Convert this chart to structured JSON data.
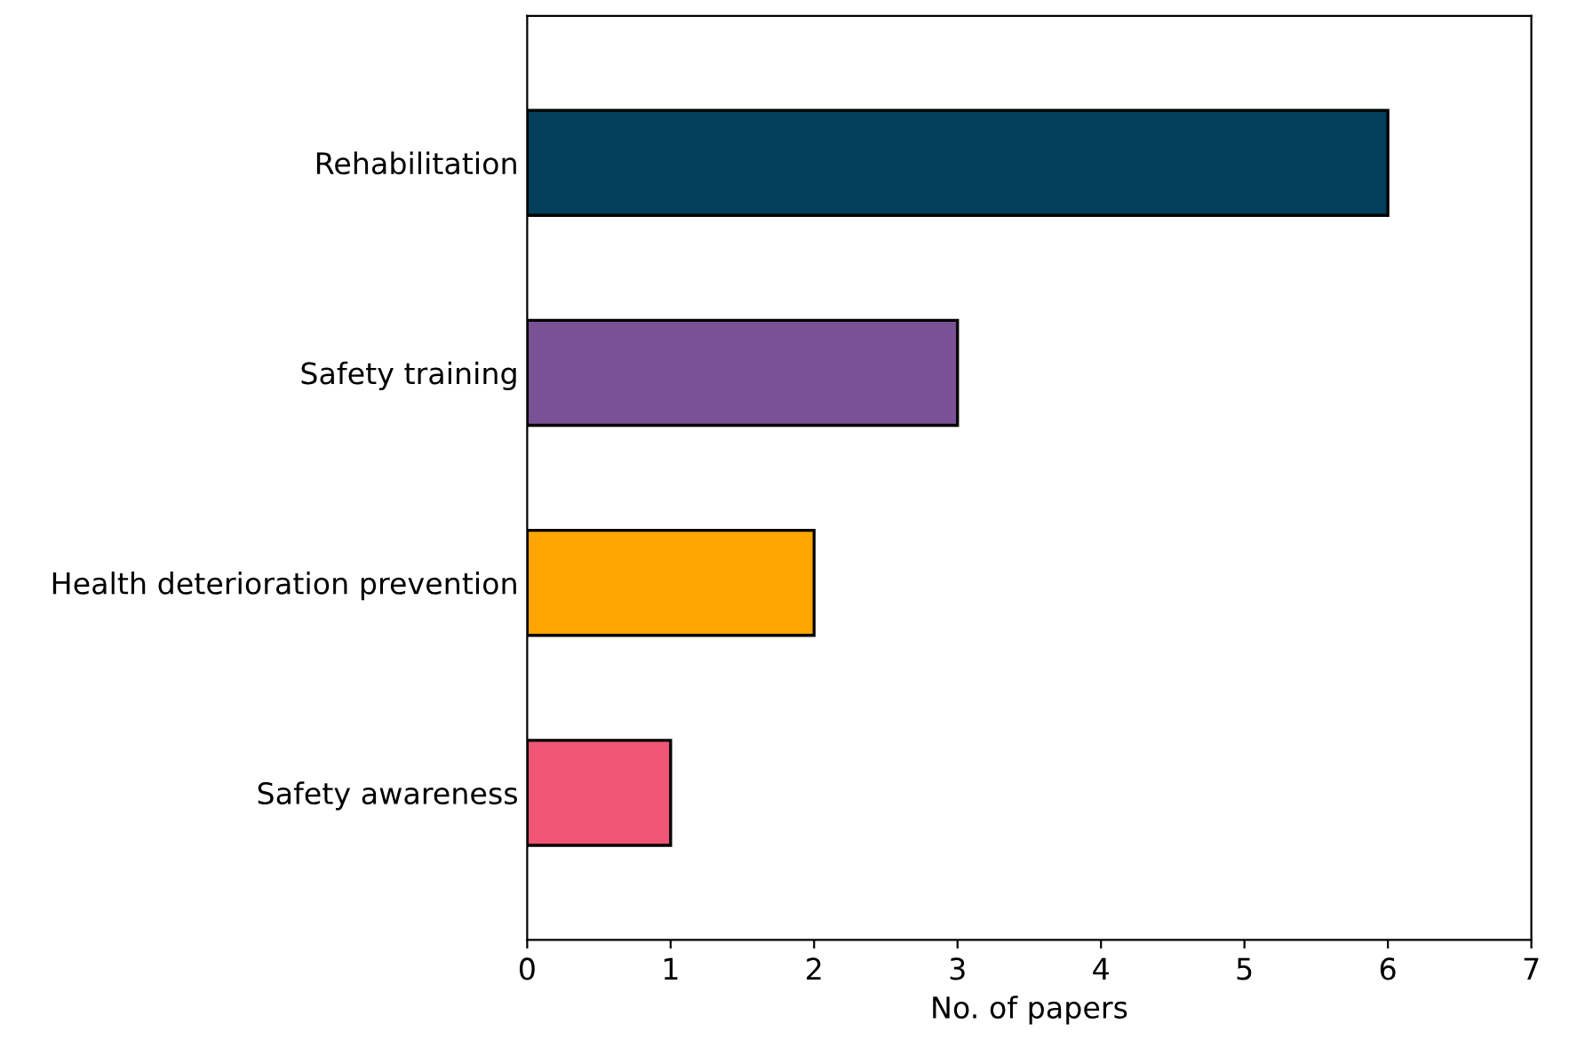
{
  "chart_data": {
    "type": "bar",
    "orientation": "horizontal",
    "xlabel": "No. of papers",
    "categories": [
      "Rehabilitation",
      "Safety training",
      "Health deterioration prevention",
      "Safety awareness"
    ],
    "values": [
      6,
      3,
      2,
      1
    ],
    "colors": [
      "#023f5c",
      "#7a5195",
      "#ffa600",
      "#ef5675"
    ],
    "xlim": [
      0,
      7
    ],
    "xticks": [
      0,
      1,
      2,
      3,
      4,
      5,
      6,
      7
    ],
    "grid": false
  }
}
